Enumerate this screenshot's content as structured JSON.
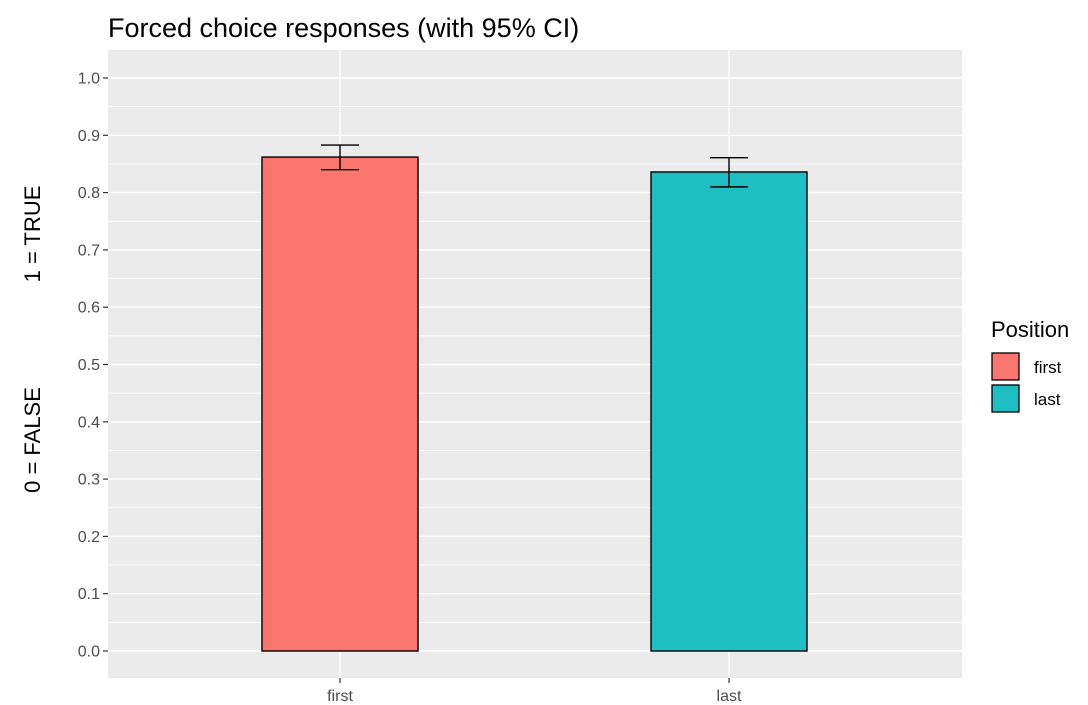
{
  "chart_data": {
    "type": "bar",
    "title": "Forced choice responses (with 95% CI)",
    "ylabel_lines": [
      "1 = TRUE",
      "0 = FALSE"
    ],
    "xlabel": "",
    "categories": [
      "first",
      "last"
    ],
    "values": [
      0.862,
      0.836
    ],
    "ci_lower": [
      0.84,
      0.81
    ],
    "ci_upper": [
      0.883,
      0.861
    ],
    "colors": [
      "#F8766D",
      "#1FBEC3"
    ],
    "ylim": [
      0,
      1.05
    ],
    "yticks": [
      "0.0",
      "0.1",
      "0.2",
      "0.3",
      "0.4",
      "0.5",
      "0.6",
      "0.7",
      "0.8",
      "0.9",
      "1.0"
    ],
    "ytick_values": [
      0,
      0.1,
      0.2,
      0.3,
      0.4,
      0.5,
      0.6,
      0.7,
      0.8,
      0.9,
      1.0
    ],
    "grid": true,
    "legend": {
      "title": "Position",
      "placement": "right",
      "entries": [
        "first",
        "last"
      ]
    }
  }
}
